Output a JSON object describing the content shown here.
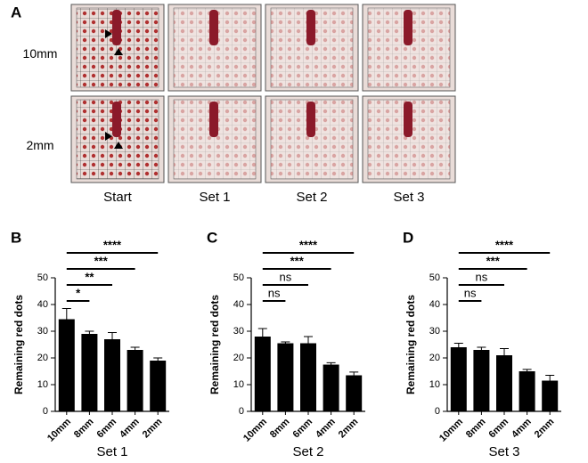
{
  "panel_a": {
    "label": "A",
    "rows": [
      "10mm",
      "2mm"
    ],
    "columns": [
      "Start",
      "Set 1",
      "Set 2",
      "Set 3"
    ]
  },
  "chart_data": [
    {
      "type": "bar",
      "panel_label": "B",
      "y_label": "Remaining red dots",
      "x_label": "Set 1",
      "categories": [
        "10mm",
        "8mm",
        "6mm",
        "4mm",
        "2mm"
      ],
      "values": [
        34.5,
        29,
        27,
        23,
        19
      ],
      "errors": [
        4,
        1,
        2.5,
        1,
        1
      ],
      "color": "#000000",
      "ylim": [
        0,
        50
      ],
      "yticks": [
        0,
        10,
        20,
        30,
        40,
        50
      ],
      "annotations": [
        {
          "label": "*",
          "from": "10mm",
          "to": "8mm"
        },
        {
          "label": "**",
          "from": "10mm",
          "to": "6mm"
        },
        {
          "label": "***",
          "from": "10mm",
          "to": "4mm"
        },
        {
          "label": "****",
          "from": "10mm",
          "to": "2mm"
        }
      ]
    },
    {
      "type": "bar",
      "panel_label": "C",
      "y_label": "Remaining red dots",
      "x_label": "Set 2",
      "categories": [
        "10mm",
        "8mm",
        "6mm",
        "4mm",
        "2mm"
      ],
      "values": [
        28,
        25.5,
        25.5,
        17.5,
        13.5
      ],
      "errors": [
        3,
        0.5,
        2.5,
        0.7,
        1.2
      ],
      "color": "#000000",
      "ylim": [
        0,
        50
      ],
      "yticks": [
        0,
        10,
        20,
        30,
        40,
        50
      ],
      "annotations": [
        {
          "label": "ns",
          "from": "10mm",
          "to": "8mm"
        },
        {
          "label": "ns",
          "from": "10mm",
          "to": "6mm"
        },
        {
          "label": "***",
          "from": "10mm",
          "to": "4mm"
        },
        {
          "label": "****",
          "from": "10mm",
          "to": "2mm"
        }
      ]
    },
    {
      "type": "bar",
      "panel_label": "D",
      "y_label": "Remaining red dots",
      "x_label": "Set 3",
      "categories": [
        "10mm",
        "8mm",
        "6mm",
        "4mm",
        "2mm"
      ],
      "values": [
        24,
        23,
        21,
        15,
        11.5
      ],
      "errors": [
        1.5,
        1,
        2.5,
        0.7,
        2
      ],
      "color": "#000000",
      "ylim": [
        0,
        50
      ],
      "yticks": [
        0,
        10,
        20,
        30,
        40,
        50
      ],
      "annotations": [
        {
          "label": "ns",
          "from": "10mm",
          "to": "8mm"
        },
        {
          "label": "ns",
          "from": "10mm",
          "to": "6mm"
        },
        {
          "label": "***",
          "from": "10mm",
          "to": "4mm"
        },
        {
          "label": "****",
          "from": "10mm",
          "to": "2mm"
        }
      ]
    }
  ]
}
